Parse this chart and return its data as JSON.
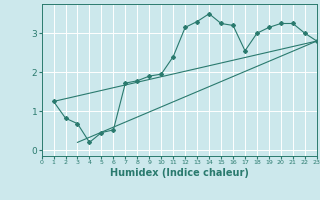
{
  "xlabel": "Humidex (Indice chaleur)",
  "ylabel": "",
  "bg_color": "#cce8ec",
  "line_color": "#2a7a6e",
  "grid_color": "#ffffff",
  "xlim": [
    0,
    23
  ],
  "ylim": [
    -0.15,
    3.75
  ],
  "yticks": [
    0,
    1,
    2,
    3
  ],
  "xticks": [
    0,
    1,
    2,
    3,
    4,
    5,
    6,
    7,
    8,
    9,
    10,
    11,
    12,
    13,
    14,
    15,
    16,
    17,
    18,
    19,
    20,
    21,
    22,
    23
  ],
  "curve_x": [
    1,
    2,
    3,
    4,
    5,
    6,
    7,
    8,
    9,
    10,
    11,
    12,
    13,
    14,
    15,
    16,
    17,
    18,
    19,
    20,
    21,
    22,
    23
  ],
  "curve_y": [
    1.25,
    0.82,
    0.68,
    0.2,
    0.45,
    0.52,
    1.72,
    1.78,
    1.9,
    1.95,
    2.4,
    3.15,
    3.3,
    3.5,
    3.25,
    3.2,
    2.55,
    3.0,
    3.15,
    3.25,
    3.25,
    3.0,
    2.8
  ],
  "line1_x": [
    1,
    23
  ],
  "line1_y": [
    1.25,
    2.8
  ],
  "line2_x": [
    3,
    23
  ],
  "line2_y": [
    0.2,
    2.8
  ]
}
